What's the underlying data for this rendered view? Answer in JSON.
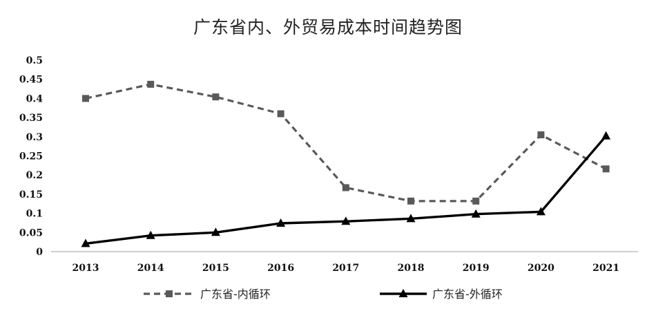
{
  "chart_data": {
    "type": "line",
    "title": "广东省内、外贸易成本时间趋势图",
    "xlabel": "",
    "ylabel": "",
    "categories": [
      "2013",
      "2014",
      "2015",
      "2016",
      "2017",
      "2018",
      "2019",
      "2020",
      "2021"
    ],
    "y_ticks": [
      "0",
      "0.05",
      "0.1",
      "0.15",
      "0.2",
      "0.25",
      "0.3",
      "0.35",
      "0.4",
      "0.45",
      "0.5"
    ],
    "ylim": [
      0,
      0.5
    ],
    "grid": false,
    "legend_position": "bottom",
    "series": [
      {
        "name": "广东省-内循环",
        "values": [
          0.4,
          0.437,
          0.404,
          0.36,
          0.167,
          0.132,
          0.132,
          0.305,
          0.216
        ],
        "color": "#595959",
        "line_style": "dashed",
        "marker": "square"
      },
      {
        "name": "广东省-外循环",
        "values": [
          0.021,
          0.042,
          0.05,
          0.074,
          0.079,
          0.086,
          0.098,
          0.104,
          0.302
        ],
        "color": "#000000",
        "line_style": "solid",
        "marker": "triangle"
      }
    ]
  }
}
